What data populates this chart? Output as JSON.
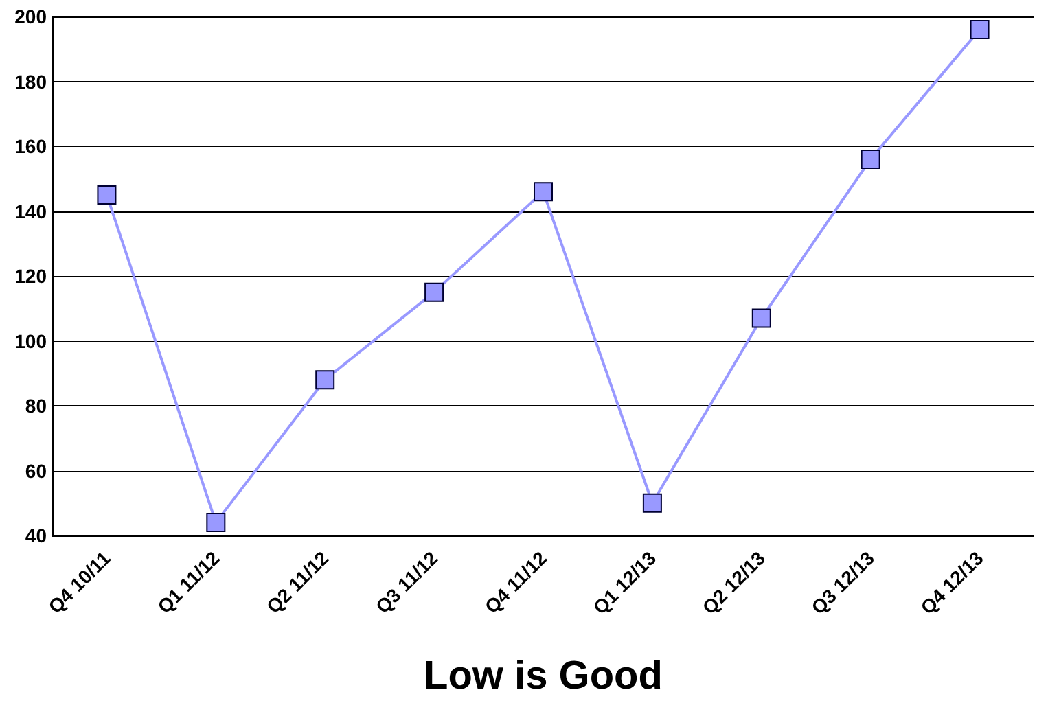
{
  "chart_data": {
    "type": "line",
    "xlabel": "Low is Good",
    "categories": [
      "Q4 10/11",
      "Q1 11/12",
      "Q2 11/12",
      "Q3 11/12",
      "Q4 11/12",
      "Q1 12/13",
      "Q2 12/13",
      "Q3 12/13",
      "Q4 12/13"
    ],
    "series": [
      {
        "color": "#9999ff",
        "values": [
          145,
          44,
          88,
          115,
          146,
          50,
          107,
          156,
          196
        ]
      }
    ],
    "ylim": [
      40,
      200
    ],
    "yticks": [
      40,
      60,
      80,
      100,
      120,
      140,
      160,
      180,
      200
    ],
    "grid": "y",
    "marker": "square",
    "line_style": "solid"
  }
}
